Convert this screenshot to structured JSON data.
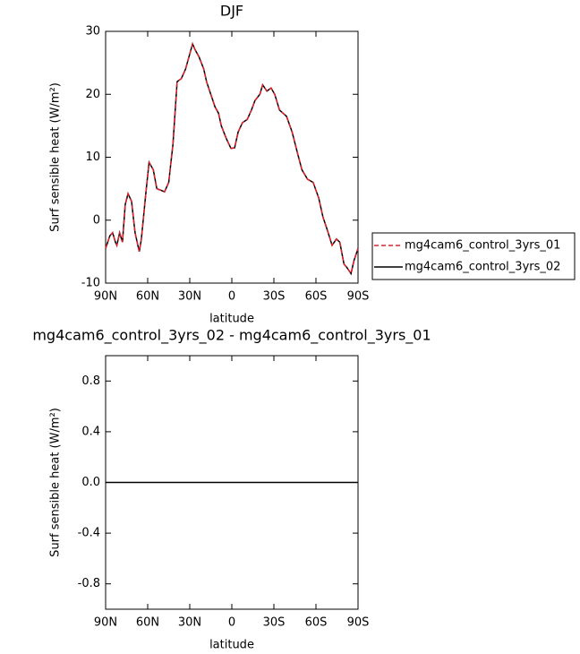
{
  "chart_data": [
    {
      "type": "line",
      "title": "DJF",
      "xlabel": "latitude",
      "ylabel": "Surf sensible heat (W/m²)",
      "x": [
        90,
        87,
        85,
        83,
        82,
        80,
        78,
        76,
        74,
        71.5,
        69,
        66,
        64.5,
        61,
        59,
        56,
        53.5,
        50,
        48,
        45,
        42,
        39,
        36,
        33,
        30.5,
        28,
        26,
        23.5,
        20,
        18,
        15,
        12,
        9.5,
        7.5,
        4,
        0.6,
        -2,
        -4.5,
        -7.6,
        -11,
        -14,
        -16.5,
        -20,
        -22,
        -25,
        -28,
        -30.6,
        -34,
        -39,
        -43,
        -47,
        -50,
        -54,
        -58,
        -62,
        -65,
        -68,
        -71.5,
        -74.6,
        -77,
        -80,
        -82,
        -85,
        -87,
        -90
      ],
      "series": [
        {
          "name": "mg4cam6_control_3yrs_01",
          "color": "#e0202a",
          "dash": true,
          "values": [
            -4.5,
            -2.5,
            -2,
            -3.5,
            -4,
            -2,
            -3.5,
            2.5,
            4.2,
            3,
            -2,
            -5,
            -3,
            5,
            9.2,
            8,
            5,
            4.7,
            4.5,
            6,
            12,
            22,
            22.5,
            24,
            26,
            28,
            27,
            26,
            24,
            22,
            20,
            18,
            17,
            15,
            13,
            11.4,
            11.5,
            14,
            15.5,
            16,
            17.5,
            19,
            20,
            21.5,
            20.5,
            21,
            20,
            17.5,
            16.5,
            14,
            10.5,
            8,
            6.5,
            6,
            3.5,
            0.5,
            -1.5,
            -4,
            -3,
            -3.5,
            -7,
            -7.5,
            -8.5,
            -6.5,
            -4.5
          ]
        },
        {
          "name": "mg4cam6_control_3yrs_02",
          "color": "#000000",
          "dash": false,
          "values": [
            -4.5,
            -2.5,
            -2,
            -3.5,
            -4,
            -2,
            -3.5,
            2.5,
            4.2,
            3,
            -2,
            -5,
            -3,
            5,
            9.2,
            8,
            5,
            4.7,
            4.5,
            6,
            12,
            22,
            22.5,
            24,
            26,
            28,
            27,
            26,
            24,
            22,
            20,
            18,
            17,
            15,
            13,
            11.4,
            11.5,
            14,
            15.5,
            16,
            17.5,
            19,
            20,
            21.5,
            20.5,
            21,
            20,
            17.5,
            16.5,
            14,
            10.5,
            8,
            6.5,
            6,
            3.5,
            0.5,
            -1.5,
            -4,
            -3,
            -3.5,
            -7,
            -7.5,
            -8.5,
            -6.5,
            -4.5
          ]
        }
      ],
      "xlim": [
        90,
        -90
      ],
      "xticks": [
        {
          "value": 90,
          "label": "90N"
        },
        {
          "value": 60,
          "label": "60N"
        },
        {
          "value": 30,
          "label": "30N"
        },
        0,
        {
          "value": -30,
          "label": "30S"
        },
        {
          "value": -60,
          "label": "60S"
        },
        {
          "value": -90,
          "label": "90S"
        }
      ],
      "ylim": [
        -10,
        30
      ],
      "yticks": [
        -10,
        0,
        10,
        20,
        30
      ],
      "legend": "right"
    },
    {
      "type": "line",
      "title": "mg4cam6_control_3yrs_02 - mg4cam6_control_3yrs_01",
      "xlabel": "latitude",
      "ylabel": "Surf sensible heat (W/m²)",
      "x": [
        90,
        -90
      ],
      "series": [
        {
          "color": "#000000",
          "dash": false,
          "values": [
            0,
            0
          ]
        }
      ],
      "xlim": [
        90,
        -90
      ],
      "xticks": [
        {
          "value": 90,
          "label": "90N"
        },
        {
          "value": 60,
          "label": "60N"
        },
        {
          "value": 30,
          "label": "30N"
        },
        0,
        {
          "value": -30,
          "label": "30S"
        },
        {
          "value": -60,
          "label": "60S"
        },
        {
          "value": -90,
          "label": "90S"
        }
      ],
      "ylim": [
        -1,
        1
      ],
      "yticks": [
        -0.8,
        -0.4,
        {
          "value": 0,
          "label": "0.0"
        },
        0.4,
        0.8
      ]
    }
  ]
}
